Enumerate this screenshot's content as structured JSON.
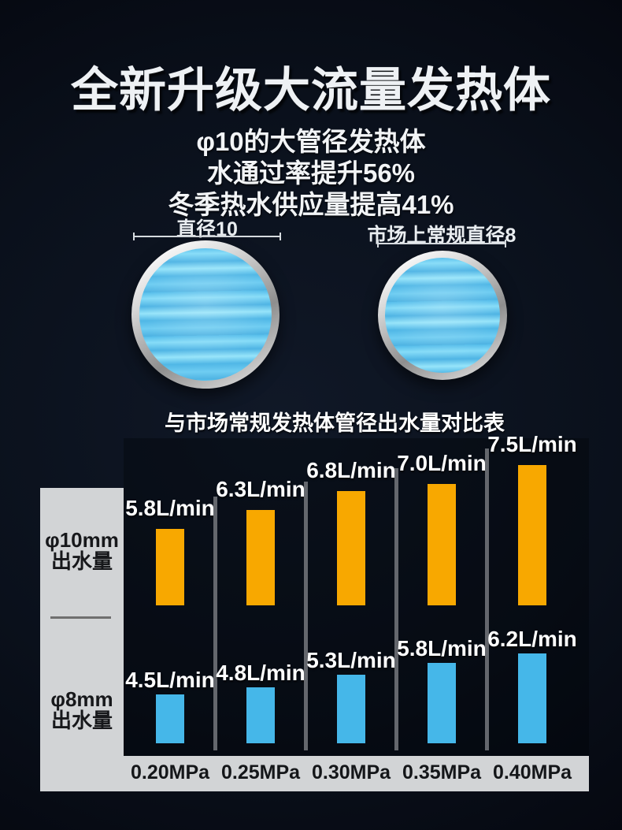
{
  "header": {
    "title": "全新升级大流量发热体",
    "subtitle_lines": [
      "φ10的大管径发热体",
      "水通过率提升56%",
      "冬季热水供应量提高41%"
    ]
  },
  "diameter_comparison": {
    "left": {
      "label": "直径10"
    },
    "right": {
      "label": "市场上常规直径8"
    }
  },
  "chart_data": {
    "type": "bar",
    "title": "与市场常规发热体管径出水量对比表",
    "categories": [
      "0.20MPa",
      "0.25MPa",
      "0.30MPa",
      "0.35MPa",
      "0.40MPa"
    ],
    "unit": "L/min",
    "xlabel": "",
    "ylabel": "",
    "grid": false,
    "legend_position": "row-labels-left",
    "series": [
      {
        "name": "φ10mm出水量",
        "row_label_lines": [
          "φ10mm",
          "出水量"
        ],
        "values": [
          5.8,
          6.3,
          6.8,
          7.0,
          7.5
        ],
        "labels": [
          "5.8L/min",
          "6.3L/min",
          "6.8L/min",
          "7.0L/min",
          "7.5L/min"
        ],
        "color": "#F8A800"
      },
      {
        "name": "φ8mm出水量",
        "row_label_lines": [
          "φ8mm",
          "出水量"
        ],
        "values": [
          4.5,
          4.8,
          5.3,
          5.8,
          6.2
        ],
        "labels": [
          "4.5L/min",
          "4.8L/min",
          "5.3L/min",
          "5.8L/min",
          "6.2L/min"
        ],
        "color": "#45B7E9"
      }
    ]
  },
  "colors": {
    "background_dark": "#05080F",
    "background_mid": "#101827",
    "bar_orange": "#F8A800",
    "bar_blue": "#45B7E9",
    "panel_gray": "#D2D4D6",
    "panel_text": "#17181B",
    "column_divider": "#64676D",
    "water_blue": "#53BCEA",
    "ring_silver": "#D8D8D8",
    "value_label": "#FFFFFF"
  }
}
